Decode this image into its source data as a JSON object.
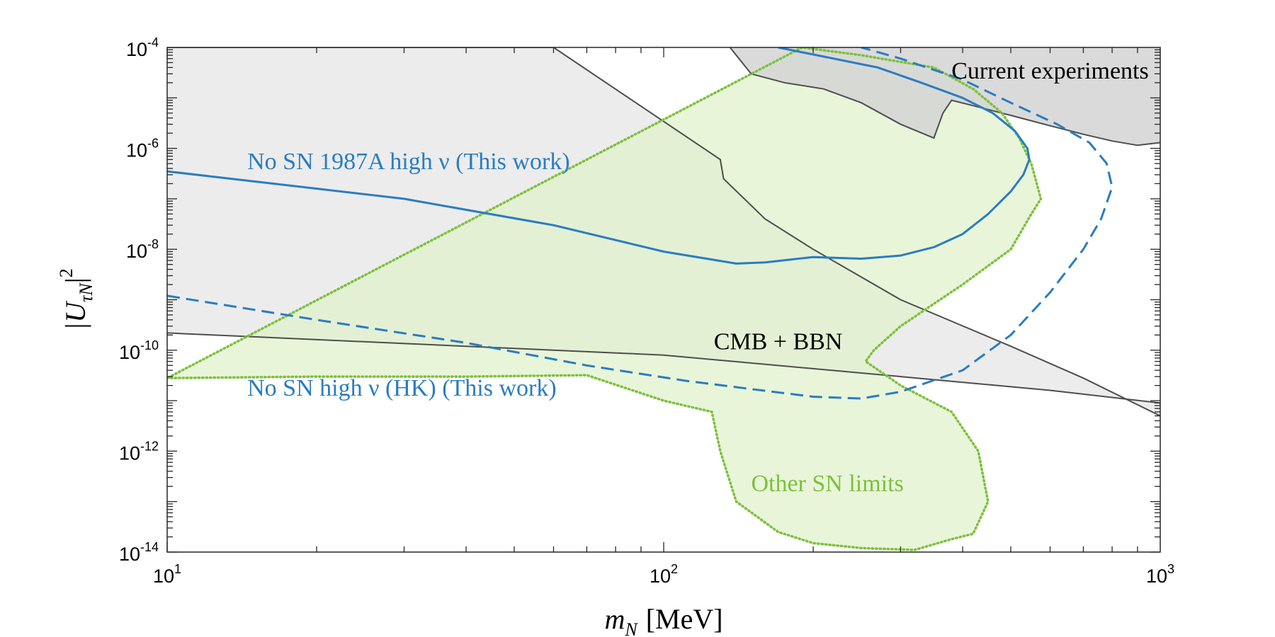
{
  "chart_data": {
    "type": "area",
    "title": "",
    "xscale": "log",
    "yscale": "log",
    "xlim": [
      10,
      1000
    ],
    "ylim": [
      1e-14,
      0.0001
    ],
    "xlabel": {
      "symbol": "m",
      "sub": "N",
      "unit": "[MeV]"
    },
    "ylabel": {
      "symbol": "|U",
      "sub": "τN",
      "close": "|",
      "sup": "2"
    },
    "x_ticks": [
      {
        "base": "10",
        "exp": "1"
      },
      {
        "base": "10",
        "exp": "2"
      },
      {
        "base": "10",
        "exp": "3"
      }
    ],
    "y_ticks": [
      {
        "base": "10",
        "exp": "-4"
      },
      {
        "base": "10",
        "exp": "-6"
      },
      {
        "base": "10",
        "exp": "-8"
      },
      {
        "base": "10",
        "exp": "-10"
      },
      {
        "base": "10",
        "exp": "-12"
      },
      {
        "base": "10",
        "exp": "-14"
      }
    ],
    "series": [
      {
        "name": "Current experiments",
        "kind": "filled-region",
        "color": "#d3d3d3",
        "edge": "#4d4d4d",
        "x": [
          136,
          150,
          175,
          210,
          250,
          300,
          350,
          365,
          380,
          420,
          500,
          600,
          700,
          800,
          900,
          1000
        ],
        "y": [
          0.0001,
          3e-05,
          2e-05,
          1.5e-05,
          8e-06,
          3e-06,
          1.6e-06,
          5e-06,
          9e-06,
          7e-06,
          4.5e-06,
          2.8e-06,
          1.9e-06,
          1.4e-06,
          1.15e-06,
          1.3e-06
        ]
      },
      {
        "name": "CMB + BBN",
        "kind": "filled-region",
        "color": "#ececec",
        "edge": "#4d4d4d",
        "x": [
          10,
          60,
          130,
          132,
          160,
          200,
          300,
          500,
          700,
          1000
        ],
        "y": [
          0.0001,
          0.0001,
          6e-07,
          2.5e-07,
          4e-08,
          1e-08,
          1e-09,
          1.2e-10,
          2.8e-11,
          5e-12
        ],
        "lower_x": [
          10,
          100,
          300,
          600,
          1000
        ],
        "lower_y": [
          2.2e-10,
          8e-11,
          3e-11,
          1.6e-11,
          9e-12
        ]
      },
      {
        "name": "Other SN limits",
        "kind": "filled-region",
        "color": "#e0f1cc",
        "edge": "#7cc13b",
        "x": [
          10,
          20,
          40,
          70,
          100,
          125,
          130,
          140,
          170,
          200,
          250,
          320,
          380,
          420,
          450,
          430,
          380,
          300,
          255,
          265,
          300,
          400,
          500,
          550,
          575,
          550,
          520,
          480,
          420,
          350,
          250,
          190
        ],
        "y": [
          2.8e-11,
          3e-11,
          3e-11,
          3.2e-11,
          1e-11,
          6e-12,
          1e-12,
          1e-13,
          2.5e-14,
          1.5e-14,
          1.2e-14,
          1.1e-14,
          1.8e-14,
          2.3e-14,
          1e-13,
          1e-12,
          6e-12,
          2e-11,
          6e-11,
          1e-10,
          3e-10,
          2e-09,
          1e-08,
          5e-08,
          1e-07,
          5e-07,
          1.6e-06,
          5e-06,
          1.5e-05,
          4e-05,
          7e-05,
          0.0001
        ]
      },
      {
        "name": "No SN 1987A high ν (This work)",
        "kind": "line",
        "color": "#2a7cc1",
        "style": "solid",
        "x": [
          10,
          30,
          60,
          100,
          140,
          160,
          200,
          250,
          300,
          350,
          400,
          450,
          500,
          530,
          545,
          540,
          510,
          460,
          400,
          330,
          270,
          220,
          170
        ],
        "y": [
          3.5e-07,
          1e-07,
          3e-08,
          9e-09,
          5.2e-09,
          5.5e-09,
          7e-09,
          6.5e-09,
          7.5e-09,
          1.1e-08,
          2e-08,
          5e-08,
          1.4e-07,
          3e-07,
          6e-07,
          1e-06,
          2.2e-06,
          5e-06,
          1e-05,
          2e-05,
          4e-05,
          6e-05,
          0.0001
        ]
      },
      {
        "name": "No SN high ν (HK) (This work)",
        "kind": "line",
        "color": "#2a7cc1",
        "style": "dashed",
        "x": [
          10,
          20,
          40,
          70,
          110,
          150,
          200,
          250,
          300,
          400,
          500,
          600,
          700,
          760,
          800,
          780,
          720,
          620,
          500,
          400,
          300,
          250
        ],
        "y": [
          1.2e-09,
          4e-10,
          1.4e-10,
          5e-11,
          2.5e-11,
          1.7e-11,
          1.2e-11,
          1.1e-11,
          1.5e-11,
          4e-11,
          2e-10,
          1.4e-09,
          1e-08,
          4e-08,
          1.7e-07,
          5e-07,
          1.3e-06,
          3e-06,
          8e-06,
          2.3e-05,
          6e-05,
          0.0001
        ]
      }
    ],
    "annotations": [
      {
        "text": "Current experiments",
        "x": 600,
        "y": 2.4e-05,
        "color": "#000000",
        "anchor": "middle"
      },
      {
        "text": "No SN 1987A high ν (This work)",
        "x": 14.5,
        "y": 3.9e-07,
        "color": "#2a7cc1",
        "anchor": "start"
      },
      {
        "text": "CMB + BBN",
        "x": 170,
        "y": 1.05e-10,
        "color": "#000000",
        "anchor": "middle"
      },
      {
        "text": "No SN high ν (HK) (This work)",
        "x": 14.5,
        "y": 1.25e-11,
        "color": "#2a7cc1",
        "anchor": "start"
      },
      {
        "text": "Other SN limits",
        "x": 150,
        "y": 1.6e-13,
        "color": "#7cc13b",
        "anchor": "start"
      }
    ],
    "grid": false,
    "legend": "none"
  }
}
